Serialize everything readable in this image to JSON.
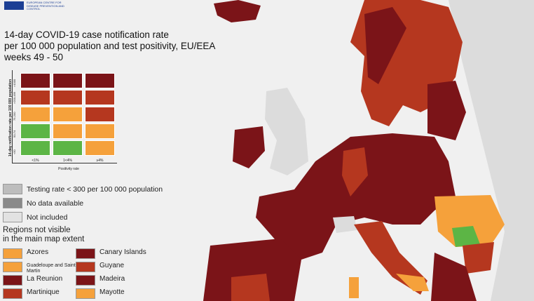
{
  "header": {
    "org": "EUROPEAN CENTRE FOR DISEASE PREVENTION AND CONTROL"
  },
  "title": [
    "14-day COVID-19 case notification rate",
    "per 100 000 population and test positivity, EU/EEA",
    "weeks 49 - 50"
  ],
  "matrix": {
    "y_label": "14-day notification rate per 100 000 population",
    "row_labels": [
      ">1000",
      ">200-499",
      "75-200",
      "50-74",
      "<50"
    ],
    "colors": [
      [
        "#7b1418",
        "#7b1418",
        "#7b1418"
      ],
      [
        "#b5371f",
        "#b5371f",
        "#b5371f"
      ],
      [
        "#f5a13b",
        "#f5a13b",
        "#b5371f"
      ],
      [
        "#5cb545",
        "#f5a13b",
        "#f5a13b"
      ],
      [
        "#5cb545",
        "#5cb545",
        "#f5a13b"
      ]
    ],
    "col_labels": [
      "<1%",
      "1<4%",
      "≥4%"
    ],
    "x_label": "Positivity rate"
  },
  "legend": [
    {
      "label": "Testing rate < 300 per 100 000 population",
      "color": "#bdbdbd"
    },
    {
      "label": "No data available",
      "color": "#8a8a8a"
    },
    {
      "label": "Not included",
      "color": "#e2e2e2"
    }
  ],
  "regions_heading": [
    "Regions not visible",
    "in the main map extent"
  ],
  "regions": [
    {
      "label": "Azores",
      "color": "#f5a13b"
    },
    {
      "label": "Canary Islands",
      "color": "#7b1418"
    },
    {
      "label": "Guadeloupe and Saint Martin",
      "color": "#f5a13b"
    },
    {
      "label": "Guyane",
      "color": "#b5371f"
    },
    {
      "label": "La Reunion",
      "color": "#7b1418"
    },
    {
      "label": "Madeira",
      "color": "#7b1418"
    },
    {
      "label": "Martinique",
      "color": "#b5371f"
    },
    {
      "label": "Mayotte",
      "color": "#f5a13b"
    }
  ]
}
